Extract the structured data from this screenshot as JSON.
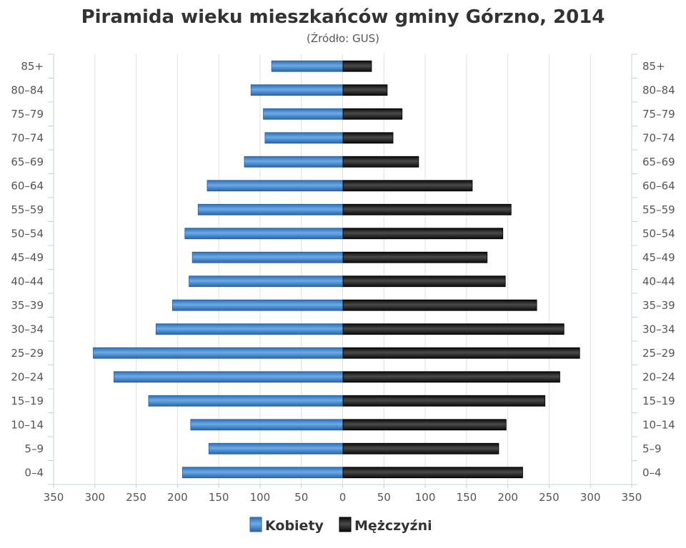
{
  "chart_data": {
    "type": "bar",
    "title": "Piramida wieku mieszkańców gminy Górzno, 2014",
    "subtitle": "(Źródło: GUS)",
    "categories": [
      "0–4",
      "5–9",
      "10–14",
      "15–19",
      "20–24",
      "25–29",
      "30–34",
      "35–39",
      "40–44",
      "45–49",
      "50–54",
      "55–59",
      "60–64",
      "65–69",
      "70–74",
      "75–79",
      "80–84",
      "85+"
    ],
    "series": [
      {
        "name": "Kobiety",
        "values": [
          194,
          162,
          184,
          235,
          277,
          302,
          226,
          206,
          186,
          182,
          191,
          175,
          164,
          119,
          94,
          96,
          111,
          86
        ],
        "color": "#4a8fd4"
      },
      {
        "name": "Mężczyźni",
        "values": [
          218,
          189,
          198,
          245,
          263,
          287,
          268,
          235,
          197,
          175,
          194,
          204,
          157,
          92,
          61,
          72,
          54,
          35
        ],
        "color": "#1a1a1a"
      }
    ],
    "xlim": [
      -350,
      350
    ],
    "xticks": [
      "350",
      "300",
      "250",
      "200",
      "150",
      "100",
      "50",
      "0",
      "50",
      "100",
      "150",
      "200",
      "250",
      "300",
      "350"
    ],
    "xtick_values": [
      -350,
      -300,
      -250,
      -200,
      -150,
      -100,
      -50,
      0,
      50,
      100,
      150,
      200,
      250,
      300,
      350
    ],
    "grid": true,
    "legend": "bottom"
  }
}
